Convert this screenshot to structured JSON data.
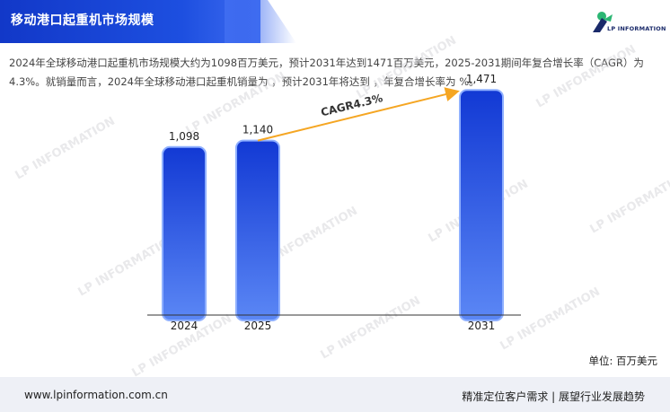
{
  "header": {
    "title": "移动港口起重机市场规模",
    "logo_text": "LP INFORMATION"
  },
  "summary": {
    "text": "2024年全球移动港口起重机市场规模大约为1098百万美元，预计2031年达到1471百万美元，2025-2031期间年复合增长率（CAGR）为4.3%。就销量而言，2024年全球移动港口起重机销量为 ，预计2031年将达到 ，年复合增长率为 %。"
  },
  "chart_data": {
    "type": "bar",
    "categories": [
      "2024",
      "2025",
      "2031"
    ],
    "values": [
      1098,
      1140,
      1471
    ],
    "value_labels": [
      "1,098",
      "1,140",
      "1,471"
    ],
    "annotation": "CAGR4.3%",
    "unit_label": "单位: 百万美元",
    "title": "",
    "xlabel": "",
    "ylabel": "",
    "ylim": [
      0,
      1600
    ],
    "grid": false,
    "colors": {
      "bar_top": "#1239d4",
      "bar_bottom": "#5b87f5",
      "arrow": "#f5a623"
    }
  },
  "watermark": {
    "text": "LP INFORMATION"
  },
  "footer": {
    "website": "www.lpinformation.com.cn",
    "slogan": "精准定位客户需求 | 展望行业发展趋势"
  }
}
